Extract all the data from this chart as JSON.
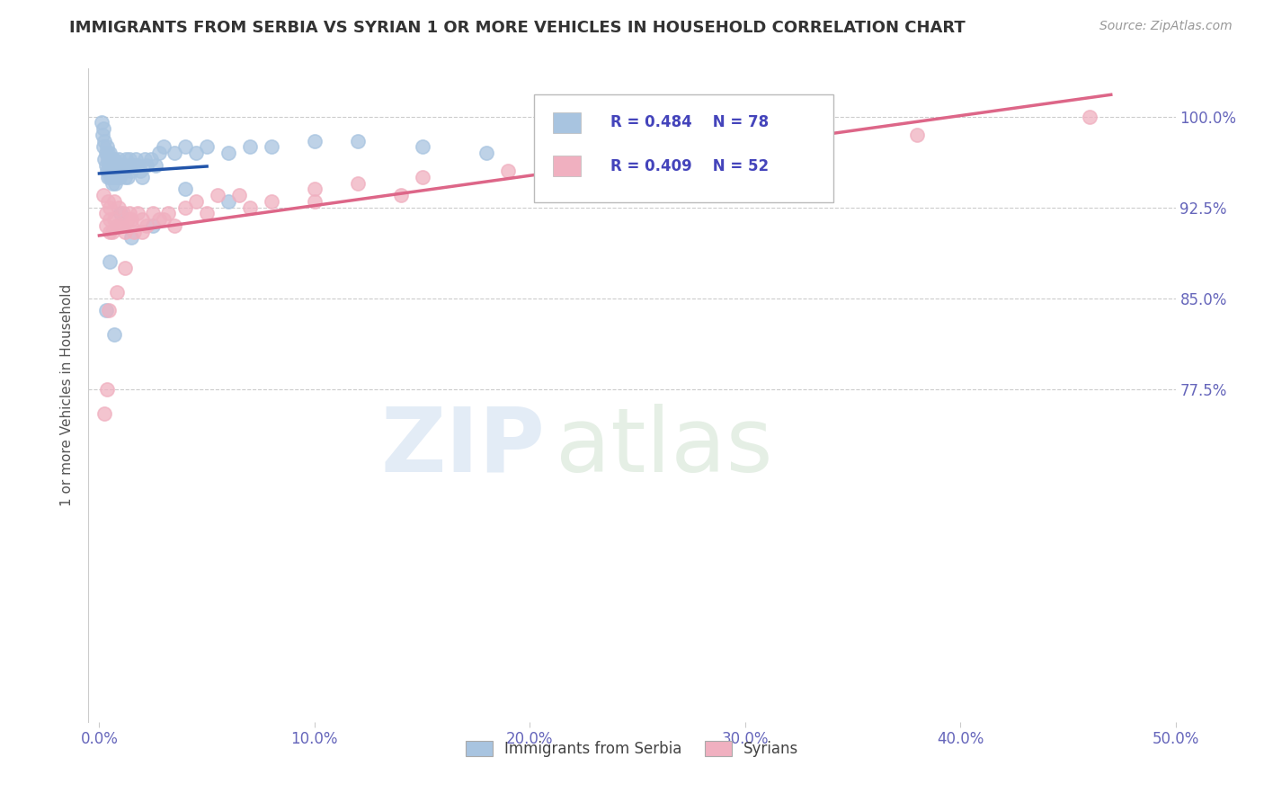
{
  "title": "IMMIGRANTS FROM SERBIA VS SYRIAN 1 OR MORE VEHICLES IN HOUSEHOLD CORRELATION CHART",
  "source_text": "Source: ZipAtlas.com",
  "ylabel": "1 or more Vehicles in Household",
  "x_tick_labels": [
    "0.0%",
    "10.0%",
    "20.0%",
    "30.0%",
    "40.0%",
    "50.0%"
  ],
  "x_tick_values": [
    0.0,
    10.0,
    20.0,
    30.0,
    40.0,
    50.0
  ],
  "y_tick_labels": [
    "77.5%",
    "85.0%",
    "92.5%",
    "100.0%"
  ],
  "y_tick_values": [
    77.5,
    85.0,
    92.5,
    100.0
  ],
  "xlim": [
    -0.5,
    50.0
  ],
  "ylim": [
    50.0,
    104.0
  ],
  "serbia_R": 0.484,
  "serbia_N": 78,
  "syrian_R": 0.409,
  "syrian_N": 52,
  "serbia_color": "#a8c4e0",
  "serbian_line_color": "#2255aa",
  "syrian_color": "#f0b0c0",
  "syrian_line_color": "#dd6688",
  "legend_serbia_label": "Immigrants from Serbia",
  "legend_syrians_label": "Syrians",
  "serbia_x": [
    0.1,
    0.15,
    0.2,
    0.2,
    0.25,
    0.25,
    0.3,
    0.3,
    0.35,
    0.35,
    0.4,
    0.4,
    0.4,
    0.45,
    0.45,
    0.5,
    0.5,
    0.5,
    0.55,
    0.55,
    0.6,
    0.6,
    0.65,
    0.65,
    0.7,
    0.7,
    0.75,
    0.75,
    0.8,
    0.8,
    0.85,
    0.9,
    0.9,
    0.95,
    1.0,
    1.0,
    1.05,
    1.1,
    1.15,
    1.2,
    1.25,
    1.3,
    1.35,
    1.4,
    1.5,
    1.6,
    1.7,
    1.8,
    1.9,
    2.0,
    2.1,
    2.2,
    2.4,
    2.6,
    2.8,
    3.0,
    3.5,
    4.0,
    4.5,
    5.0,
    6.0,
    7.0,
    8.0,
    10.0,
    12.0,
    15.0,
    18.0,
    22.0,
    27.0,
    33.0,
    1.0,
    0.5,
    0.3,
    0.7,
    1.5,
    2.5,
    4.0,
    6.0
  ],
  "serbia_y": [
    99.5,
    98.5,
    99.0,
    97.5,
    98.0,
    96.5,
    97.0,
    96.0,
    97.5,
    95.5,
    96.5,
    95.0,
    97.0,
    96.0,
    95.5,
    96.5,
    95.0,
    97.0,
    96.0,
    95.0,
    96.5,
    94.5,
    96.0,
    95.5,
    95.0,
    96.5,
    95.5,
    94.5,
    95.0,
    96.0,
    95.5,
    95.0,
    96.5,
    95.0,
    96.0,
    95.5,
    95.5,
    96.0,
    95.5,
    95.0,
    96.5,
    95.0,
    96.0,
    96.5,
    95.5,
    96.0,
    96.5,
    96.0,
    95.5,
    95.0,
    96.5,
    96.0,
    96.5,
    96.0,
    97.0,
    97.5,
    97.0,
    97.5,
    97.0,
    97.5,
    97.0,
    97.5,
    97.5,
    98.0,
    98.0,
    97.5,
    97.0,
    97.5,
    98.0,
    98.5,
    92.0,
    88.0,
    84.0,
    82.0,
    90.0,
    91.0,
    94.0,
    93.0
  ],
  "syrian_x": [
    0.2,
    0.3,
    0.4,
    0.5,
    0.5,
    0.6,
    0.7,
    0.8,
    0.9,
    1.0,
    1.1,
    1.2,
    1.3,
    1.4,
    1.5,
    1.6,
    1.8,
    2.0,
    2.2,
    2.5,
    2.8,
    3.2,
    3.5,
    4.0,
    4.5,
    5.5,
    6.5,
    8.0,
    10.0,
    12.0,
    15.0,
    19.0,
    24.0,
    30.0,
    38.0,
    46.0,
    0.3,
    0.5,
    0.7,
    1.0,
    1.5,
    2.0,
    3.0,
    5.0,
    7.0,
    10.0,
    14.0,
    0.25,
    0.35,
    0.45,
    0.8,
    1.2
  ],
  "syrian_y": [
    93.5,
    92.0,
    93.0,
    91.5,
    92.5,
    90.5,
    93.0,
    91.0,
    92.5,
    91.0,
    92.0,
    90.5,
    91.5,
    92.0,
    91.5,
    90.5,
    92.0,
    91.5,
    91.0,
    92.0,
    91.5,
    92.0,
    91.0,
    92.5,
    93.0,
    93.5,
    93.5,
    93.0,
    94.0,
    94.5,
    95.0,
    95.5,
    96.5,
    97.0,
    98.5,
    100.0,
    91.0,
    90.5,
    91.5,
    91.0,
    91.0,
    90.5,
    91.5,
    92.0,
    92.5,
    93.0,
    93.5,
    75.5,
    77.5,
    84.0,
    85.5,
    87.5
  ]
}
